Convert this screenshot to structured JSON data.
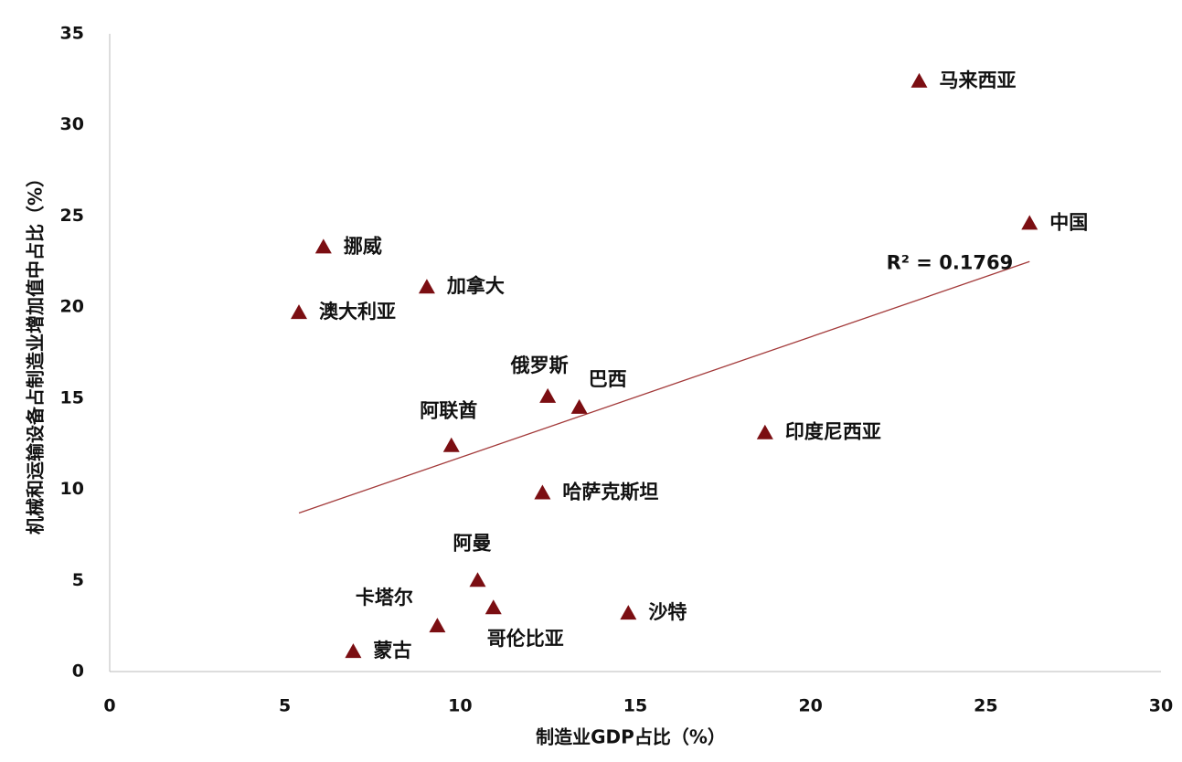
{
  "chart_data": {
    "type": "scatter",
    "xlabel": "制造业GDP占比（%）",
    "ylabel": "机械和运输设备占制造业增加值中占比（%）",
    "x": [
      23.1,
      26.25,
      6.1,
      9.05,
      5.4,
      12.5,
      13.4,
      9.75,
      18.7,
      12.35,
      10.5,
      9.35,
      10.95,
      14.8,
      6.95
    ],
    "values": [
      32.4,
      24.6,
      23.3,
      21.1,
      19.7,
      15.1,
      14.5,
      12.4,
      13.1,
      9.8,
      5.0,
      2.5,
      3.5,
      3.2,
      1.1
    ],
    "point_labels": [
      "马来西亚",
      "中国",
      "挪威",
      "加拿大",
      "澳大利亚",
      "俄罗斯",
      "巴西",
      "阿联酋",
      "印度尼西亚",
      "哈萨克斯坦",
      "阿曼",
      "卡塔尔",
      "哥伦比亚",
      "沙特",
      "蒙古"
    ],
    "color": "#7b0e12",
    "trendline": {
      "x": [
        5.4,
        26.25
      ],
      "values": [
        8.7,
        22.5
      ],
      "color": "#a33a3a",
      "label": "R² = 0.1769"
    },
    "xlim": [
      0,
      30
    ],
    "xticks": [
      0,
      5,
      10,
      15,
      20,
      25,
      30
    ],
    "ylim": [
      0,
      35
    ],
    "yticks": [
      0,
      5,
      10,
      15,
      20,
      25,
      30,
      35
    ],
    "grid": false
  }
}
